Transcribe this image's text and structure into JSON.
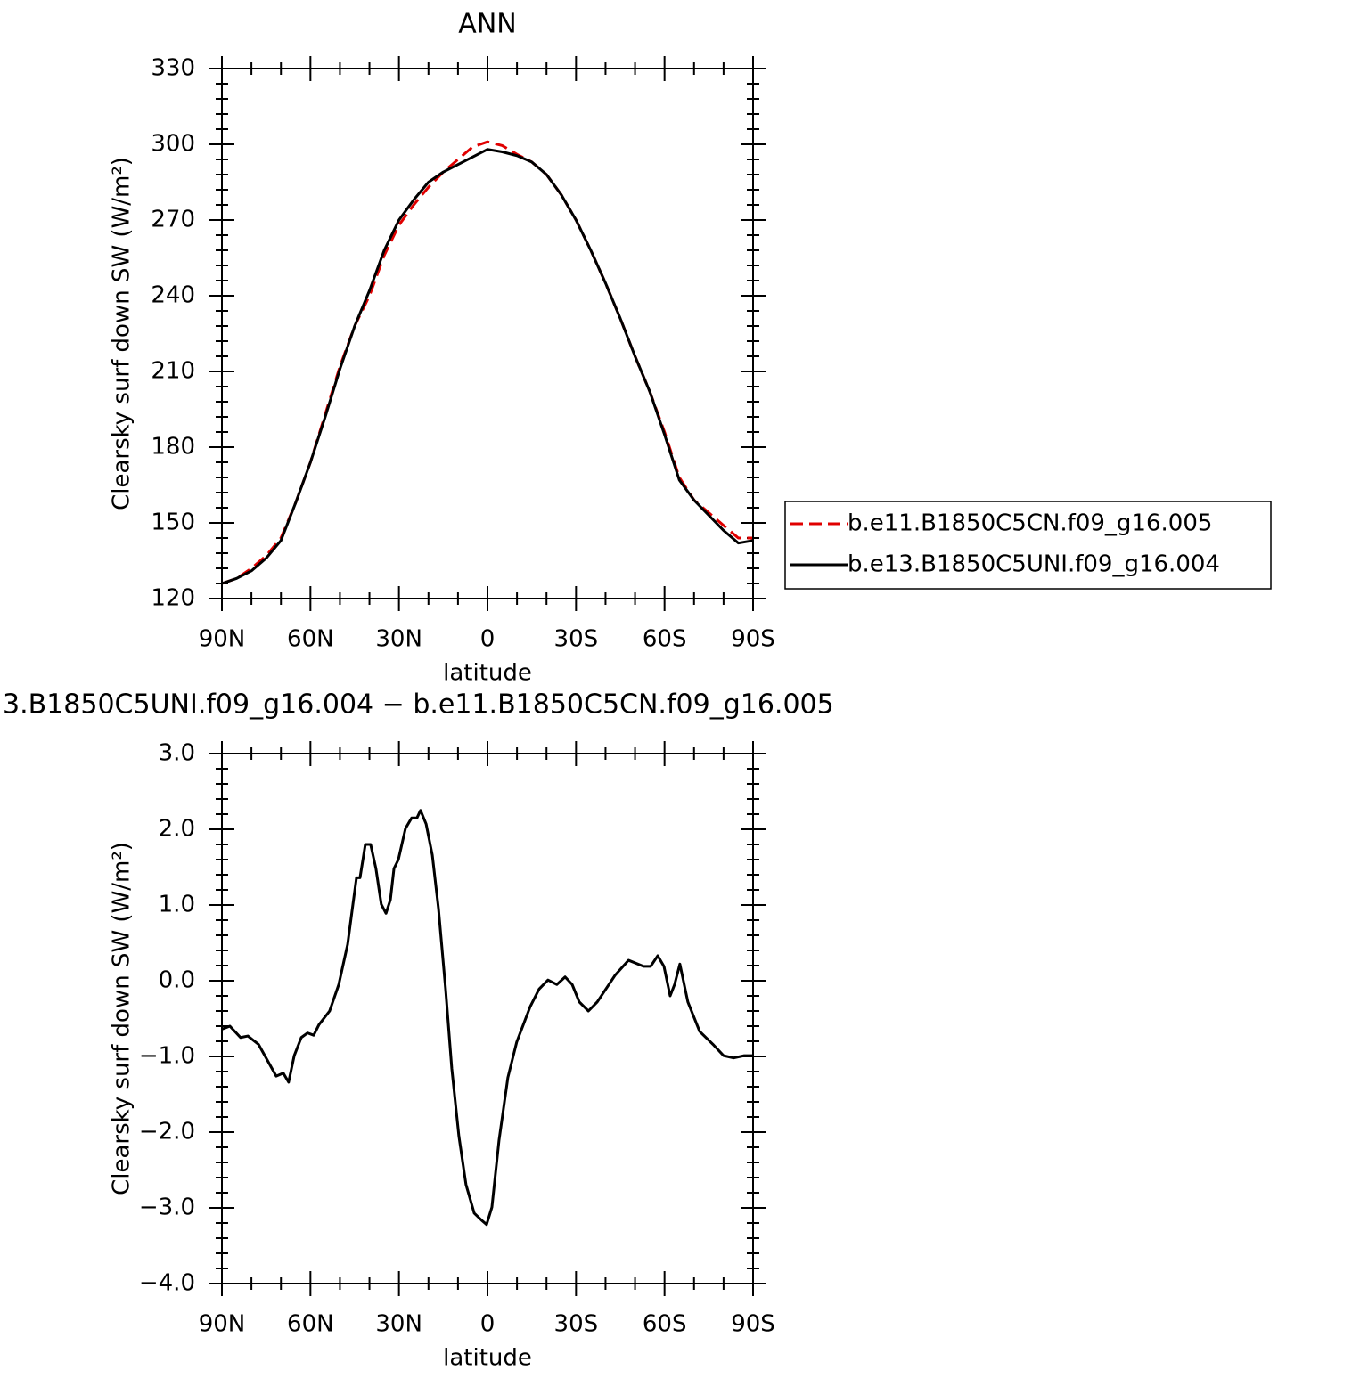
{
  "chart_data": [
    {
      "type": "line",
      "title": "ANN",
      "xlabel": "latitude",
      "ylabel": "Clearsky surf down SW (W/m²)",
      "x": [
        90,
        85,
        80,
        75,
        70,
        65,
        60,
        55,
        50,
        45,
        40,
        35,
        30,
        25,
        20,
        15,
        10,
        5,
        0,
        -5,
        -10,
        -15,
        -20,
        -25,
        -30,
        -35,
        -40,
        -45,
        -50,
        -55,
        -60,
        -65,
        -70,
        -75,
        -80,
        -85,
        -90
      ],
      "series": [
        {
          "name": "b.e11.B1850C5CN.f09_g16.005",
          "color": "#e00000",
          "dash": true,
          "values": [
            126,
            128,
            132,
            137,
            144,
            158,
            174,
            193,
            212,
            228,
            240,
            256,
            268,
            276,
            283,
            289,
            294,
            299,
            301,
            299.5,
            296,
            293,
            288,
            280,
            270,
            258,
            245,
            231,
            216,
            202,
            186,
            168,
            159,
            154,
            149,
            144,
            144
          ]
        },
        {
          "name": "b.e13.B1850C5UNI.f09_g16.004",
          "color": "#000000",
          "dash": false,
          "values": [
            126,
            128,
            131,
            136,
            143,
            158,
            174,
            192,
            211,
            228,
            242,
            258,
            270,
            278,
            285,
            289,
            292,
            295,
            298,
            297,
            295.5,
            293,
            288,
            280,
            270,
            258,
            245,
            231,
            216,
            202,
            185,
            167,
            159,
            153,
            147,
            142,
            143
          ]
        }
      ],
      "xlim": [
        90,
        -90
      ],
      "xticks": [
        {
          "value": 90,
          "label": "90N"
        },
        {
          "value": 60,
          "label": "60N"
        },
        {
          "value": 30,
          "label": "30N"
        },
        0,
        {
          "value": -30,
          "label": "30S"
        },
        {
          "value": -60,
          "label": "60S"
        },
        {
          "value": -90,
          "label": "90S"
        }
      ],
      "ylim": [
        120,
        330
      ],
      "yticks": [
        120,
        150,
        180,
        210,
        240,
        270,
        300,
        330
      ],
      "legend": "right"
    },
    {
      "type": "line",
      "title": "3.B1850C5UNI.f09_g16.004 − b.e11.B1850C5CN.f09_g16.005",
      "xlabel": "latitude",
      "ylabel": "Clearsky surf down SW (W/m²)",
      "x": [
        90,
        87.3,
        83.7,
        81.2,
        77.6,
        74.6,
        71.6,
        69.2,
        67.4,
        65.5,
        63.1,
        61,
        58.9,
        57.1,
        53.5,
        50.4,
        47.4,
        45.6,
        44.4,
        43.2,
        41.4,
        39.6,
        37.8,
        36,
        34.4,
        32.9,
        31.7,
        30.2,
        27.8,
        25.7,
        23.9,
        22.7,
        20.8,
        18.7,
        16.6,
        14.2,
        12.1,
        9.7,
        7.3,
        4.5,
        2.1,
        0.3,
        -1.5,
        -3.9,
        -6.9,
        -9.9,
        -14.5,
        -17.5,
        -20.5,
        -23.5,
        -26.3,
        -28.7,
        -31.1,
        -34.2,
        -37.2,
        -43.2,
        -47.8,
        -52.9,
        -55.3,
        -57.7,
        -59.8,
        -61.9,
        -63.4,
        -65.2,
        -67.9,
        -71.9,
        -76.4,
        -80,
        -83.4,
        -87,
        -90
      ],
      "values": [
        -0.64,
        -0.6,
        -0.75,
        -0.73,
        -0.84,
        -1.05,
        -1.26,
        -1.22,
        -1.34,
        -0.99,
        -0.75,
        -0.69,
        -0.72,
        -0.58,
        -0.4,
        -0.05,
        0.48,
        1.01,
        1.36,
        1.36,
        1.8,
        1.8,
        1.48,
        1.01,
        0.89,
        1.07,
        1.48,
        1.6,
        2.01,
        2.15,
        2.15,
        2.25,
        2.07,
        1.66,
        0.95,
        -0.11,
        -1.16,
        -2.05,
        -2.69,
        -3.07,
        -3.16,
        -3.22,
        -2.99,
        -2.11,
        -1.28,
        -0.81,
        -0.34,
        -0.11,
        0.01,
        -0.05,
        0.05,
        -0.05,
        -0.28,
        -0.4,
        -0.28,
        0.07,
        0.27,
        0.19,
        0.19,
        0.33,
        0.19,
        -0.2,
        -0.05,
        0.22,
        -0.28,
        -0.67,
        -0.84,
        -0.99,
        -1.02,
        -0.99,
        -0.99
      ],
      "color": "#000000",
      "xlim": [
        90,
        -90
      ],
      "xticks": [
        {
          "value": 90,
          "label": "90N"
        },
        {
          "value": 60,
          "label": "60N"
        },
        {
          "value": 30,
          "label": "30N"
        },
        0,
        {
          "value": -30,
          "label": "30S"
        },
        {
          "value": -60,
          "label": "60S"
        },
        {
          "value": -90,
          "label": "90S"
        }
      ],
      "ylim": [
        -4,
        3
      ],
      "yticks": [
        {
          "value": -4,
          "label": "−4.0"
        },
        {
          "value": -3,
          "label": "−3.0"
        },
        {
          "value": -2,
          "label": "−2.0"
        },
        {
          "value": -1,
          "label": "−1.0"
        },
        {
          "value": 0,
          "label": "0.0"
        },
        {
          "value": 1,
          "label": "1.0"
        },
        {
          "value": 2,
          "label": "2.0"
        },
        {
          "value": 3,
          "label": "3.0"
        }
      ]
    }
  ]
}
